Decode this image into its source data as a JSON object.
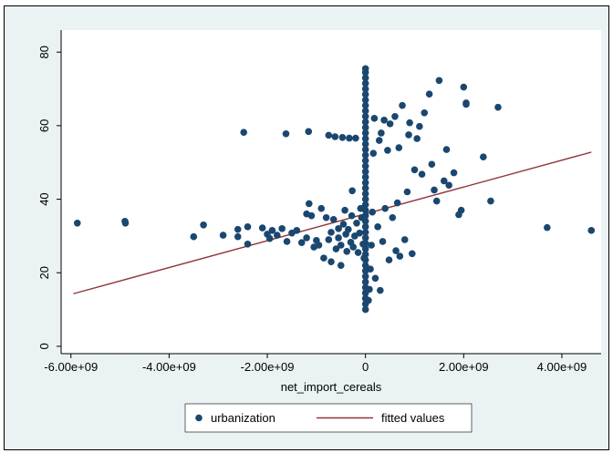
{
  "chart_data": {
    "type": "scatter",
    "title": "",
    "xlabel": "net_import_cereals",
    "ylabel": "",
    "xlim": [
      -6200000000,
      4800000000
    ],
    "ylim": [
      -2,
      86
    ],
    "x_ticks": [
      -6000000000,
      -4000000000,
      -2000000000,
      0,
      2000000000,
      4000000000
    ],
    "x_tick_labels": [
      "-6.00e+09",
      "-4.00e+09",
      "-2.00e+09",
      "0",
      "2.00e+09",
      "4.00e+09"
    ],
    "y_ticks": [
      0,
      20,
      40,
      60,
      80
    ],
    "y_tick_labels": [
      "0",
      "20",
      "40",
      "60",
      "80"
    ],
    "grid": false,
    "legend_position": "bottom",
    "colors": {
      "plot_background": "#ffffff",
      "outer_background": "#eaf2f3",
      "points": "#1a476f",
      "fit_line": "#90353b"
    },
    "series": [
      {
        "name": "urbanization",
        "kind": "scatter",
        "points": [
          [
            -5870000000,
            33.5
          ],
          [
            -4900000000,
            34
          ],
          [
            -4890000000,
            33.5
          ],
          [
            -3500000000,
            29.8
          ],
          [
            -3300000000,
            33
          ],
          [
            -2900000000,
            30.2
          ],
          [
            -2600000000,
            31.8
          ],
          [
            -2600000000,
            29.8
          ],
          [
            -2480000000,
            58.2
          ],
          [
            -2400000000,
            32.5
          ],
          [
            -2400000000,
            27.8
          ],
          [
            -2100000000,
            32.2
          ],
          [
            -2000000000,
            30.5
          ],
          [
            -1950000000,
            29.3
          ],
          [
            -1900000000,
            31.5
          ],
          [
            -1800000000,
            30.2
          ],
          [
            -1700000000,
            32
          ],
          [
            -1600000000,
            28.5
          ],
          [
            -1620000000,
            57.8
          ],
          [
            -1500000000,
            30.8
          ],
          [
            -1400000000,
            31.5
          ],
          [
            -1300000000,
            28.2
          ],
          [
            -1200000000,
            29.5
          ],
          [
            -1150000000,
            38.8
          ],
          [
            -1200000000,
            36
          ],
          [
            -1160000000,
            58.4
          ],
          [
            -1100000000,
            35.5
          ],
          [
            -1050000000,
            27
          ],
          [
            -1000000000,
            28.8
          ],
          [
            -950000000,
            27.5
          ],
          [
            -900000000,
            37.5
          ],
          [
            -850000000,
            24
          ],
          [
            -800000000,
            35
          ],
          [
            -750000000,
            29
          ],
          [
            -750000000,
            57.4
          ],
          [
            -700000000,
            31
          ],
          [
            -700000000,
            23
          ],
          [
            -650000000,
            34.5
          ],
          [
            -600000000,
            26.5
          ],
          [
            -620000000,
            57
          ],
          [
            -550000000,
            32
          ],
          [
            -550000000,
            29.5
          ],
          [
            -500000000,
            27.5
          ],
          [
            -500000000,
            22
          ],
          [
            -470000000,
            56.8
          ],
          [
            -450000000,
            33.2
          ],
          [
            -420000000,
            37
          ],
          [
            -400000000,
            30.5
          ],
          [
            -380000000,
            25.8
          ],
          [
            -350000000,
            31.8
          ],
          [
            -330000000,
            56.6
          ],
          [
            -300000000,
            28.3
          ],
          [
            -280000000,
            35.5
          ],
          [
            -270000000,
            42.3
          ],
          [
            -250000000,
            27
          ],
          [
            -220000000,
            30
          ],
          [
            -200000000,
            56.6
          ],
          [
            -180000000,
            33.5
          ],
          [
            -150000000,
            25.5
          ],
          [
            -120000000,
            30.8
          ],
          [
            -100000000,
            37.5
          ],
          [
            -80000000,
            35
          ],
          [
            -50000000,
            27.8
          ],
          [
            -30000000,
            24
          ],
          [
            0,
            10
          ],
          [
            0,
            11.5
          ],
          [
            0,
            13
          ],
          [
            0,
            14.5
          ],
          [
            0,
            16
          ],
          [
            0,
            17.5
          ],
          [
            0,
            19
          ],
          [
            0,
            20.5
          ],
          [
            0,
            22
          ],
          [
            0,
            23.5
          ],
          [
            0,
            25
          ],
          [
            0,
            26.5
          ],
          [
            0,
            28
          ],
          [
            0,
            29.5
          ],
          [
            0,
            31
          ],
          [
            0,
            32.5
          ],
          [
            0,
            34
          ],
          [
            0,
            35.5
          ],
          [
            0,
            37
          ],
          [
            0,
            38.5
          ],
          [
            0,
            40
          ],
          [
            0,
            41.5
          ],
          [
            0,
            43
          ],
          [
            0,
            44.5
          ],
          [
            0,
            46
          ],
          [
            0,
            47.5
          ],
          [
            0,
            49
          ],
          [
            0,
            50.5
          ],
          [
            0,
            52
          ],
          [
            0,
            53.5
          ],
          [
            0,
            55
          ],
          [
            0,
            56.5
          ],
          [
            0,
            58
          ],
          [
            0,
            59.5
          ],
          [
            0,
            61
          ],
          [
            0,
            62.5
          ],
          [
            0,
            64
          ],
          [
            0,
            65.5
          ],
          [
            0,
            67
          ],
          [
            0,
            68.5
          ],
          [
            0,
            70
          ],
          [
            0,
            71.5
          ],
          [
            0,
            73
          ],
          [
            0,
            74.5
          ],
          [
            0,
            75.5
          ],
          [
            60000000,
            12.5
          ],
          [
            80000000,
            15.5
          ],
          [
            100000000,
            21
          ],
          [
            120000000,
            27.5
          ],
          [
            140000000,
            36.5
          ],
          [
            160000000,
            52.5
          ],
          [
            180000000,
            62
          ],
          [
            200000000,
            18.5
          ],
          [
            250000000,
            32.5
          ],
          [
            280000000,
            56
          ],
          [
            300000000,
            15.2
          ],
          [
            320000000,
            58
          ],
          [
            350000000,
            28.5
          ],
          [
            380000000,
            61.5
          ],
          [
            400000000,
            37.5
          ],
          [
            450000000,
            53.3
          ],
          [
            480000000,
            23.5
          ],
          [
            500000000,
            60.5
          ],
          [
            550000000,
            35
          ],
          [
            600000000,
            62.5
          ],
          [
            620000000,
            26
          ],
          [
            650000000,
            39
          ],
          [
            680000000,
            54
          ],
          [
            700000000,
            24.5
          ],
          [
            750000000,
            65.5
          ],
          [
            800000000,
            29
          ],
          [
            850000000,
            42
          ],
          [
            880000000,
            57.5
          ],
          [
            900000000,
            60.8
          ],
          [
            950000000,
            25.2
          ],
          [
            1000000000,
            48
          ],
          [
            1050000000,
            56.5
          ],
          [
            1100000000,
            59.8
          ],
          [
            1150000000,
            46.8
          ],
          [
            1200000000,
            63.5
          ],
          [
            1300000000,
            68.6
          ],
          [
            1350000000,
            49.5
          ],
          [
            1400000000,
            42.5
          ],
          [
            1450000000,
            39.5
          ],
          [
            1500000000,
            72.3
          ],
          [
            1600000000,
            45
          ],
          [
            1650000000,
            53.5
          ],
          [
            1700000000,
            43.8
          ],
          [
            1800000000,
            47.2
          ],
          [
            1900000000,
            35.8
          ],
          [
            1950000000,
            37
          ],
          [
            2000000000,
            70.5
          ],
          [
            2050000000,
            66.2
          ],
          [
            2050000000,
            65.8
          ],
          [
            2550000000,
            39.5
          ],
          [
            2400000000,
            51.5
          ],
          [
            2700000000,
            65
          ],
          [
            3700000000,
            32.3
          ],
          [
            4600000000,
            31.5
          ]
        ]
      },
      {
        "name": "fitted values",
        "kind": "line",
        "points": [
          [
            -5950000000,
            14.3
          ],
          [
            4600000000,
            52.8
          ]
        ]
      }
    ]
  }
}
